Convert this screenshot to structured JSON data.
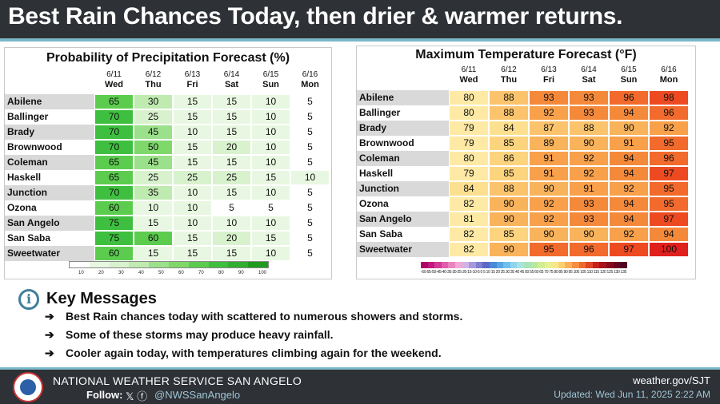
{
  "header": {
    "title": "Best Rain Chances Today, then drier & warmer returns."
  },
  "pop": {
    "title": "Probability of Precipitation Forecast (%)",
    "days": [
      {
        "date": "6/11",
        "wd": "Wed"
      },
      {
        "date": "6/12",
        "wd": "Thu"
      },
      {
        "date": "6/13",
        "wd": "Fri"
      },
      {
        "date": "6/14",
        "wd": "Sat"
      },
      {
        "date": "6/15",
        "wd": "Sun"
      },
      {
        "date": "6/16",
        "wd": "Mon"
      }
    ],
    "rows": [
      {
        "city": "Abilene",
        "values": [
          "65",
          "30",
          "15",
          "15",
          "10",
          "5"
        ]
      },
      {
        "city": "Ballinger",
        "values": [
          "70",
          "25",
          "15",
          "15",
          "10",
          "5"
        ]
      },
      {
        "city": "Brady",
        "values": [
          "70",
          "45",
          "10",
          "15",
          "10",
          "5"
        ]
      },
      {
        "city": "Brownwood",
        "values": [
          "70",
          "50",
          "15",
          "20",
          "10",
          "5"
        ]
      },
      {
        "city": "Coleman",
        "values": [
          "65",
          "45",
          "15",
          "15",
          "10",
          "5"
        ]
      },
      {
        "city": "Haskell",
        "values": [
          "65",
          "25",
          "25",
          "25",
          "15",
          "10"
        ]
      },
      {
        "city": "Junction",
        "values": [
          "70",
          "35",
          "10",
          "15",
          "10",
          "5"
        ]
      },
      {
        "city": "Ozona",
        "values": [
          "60",
          "10",
          "10",
          "5",
          "5",
          "5"
        ]
      },
      {
        "city": "San Angelo",
        "values": [
          "75",
          "15",
          "10",
          "10",
          "10",
          "5"
        ]
      },
      {
        "city": "San Saba",
        "values": [
          "75",
          "60",
          "15",
          "20",
          "15",
          "5"
        ]
      },
      {
        "city": "Sweetwater",
        "values": [
          "60",
          "15",
          "15",
          "15",
          "10",
          "5"
        ]
      }
    ],
    "legend_ticks": [
      "10",
      "20",
      "30",
      "40",
      "50",
      "60",
      "70",
      "80",
      "90",
      "100"
    ]
  },
  "maxt": {
    "title": "Maximum Temperature Forecast (°F)",
    "days": [
      {
        "date": "6/11",
        "wd": "Wed"
      },
      {
        "date": "6/12",
        "wd": "Thu"
      },
      {
        "date": "6/13",
        "wd": "Fri"
      },
      {
        "date": "6/14",
        "wd": "Sat"
      },
      {
        "date": "6/15",
        "wd": "Sun"
      },
      {
        "date": "6/16",
        "wd": "Mon"
      }
    ],
    "rows": [
      {
        "city": "Abilene",
        "values": [
          "80",
          "88",
          "93",
          "93",
          "96",
          "98"
        ]
      },
      {
        "city": "Ballinger",
        "values": [
          "80",
          "88",
          "92",
          "93",
          "94",
          "96"
        ]
      },
      {
        "city": "Brady",
        "values": [
          "79",
          "84",
          "87",
          "88",
          "90",
          "92"
        ]
      },
      {
        "city": "Brownwood",
        "values": [
          "79",
          "85",
          "89",
          "90",
          "91",
          "95"
        ]
      },
      {
        "city": "Coleman",
        "values": [
          "80",
          "86",
          "91",
          "92",
          "94",
          "96"
        ]
      },
      {
        "city": "Haskell",
        "values": [
          "79",
          "85",
          "91",
          "92",
          "94",
          "97"
        ]
      },
      {
        "city": "Junction",
        "values": [
          "84",
          "88",
          "90",
          "91",
          "92",
          "95"
        ]
      },
      {
        "city": "Ozona",
        "values": [
          "82",
          "90",
          "92",
          "93",
          "94",
          "95"
        ]
      },
      {
        "city": "San Angelo",
        "values": [
          "81",
          "90",
          "92",
          "93",
          "94",
          "97"
        ]
      },
      {
        "city": "San Saba",
        "values": [
          "82",
          "85",
          "90",
          "90",
          "92",
          "94"
        ]
      },
      {
        "city": "Sweetwater",
        "values": [
          "82",
          "90",
          "95",
          "96",
          "97",
          "100"
        ]
      }
    ],
    "legend_ticks": "-60-55-50-45-40-35-30-25-20-15-10-5 0 5 10 15 20 25 30 35 40 45 50 55 60 65 70 75 80 85 90 95 100 105 110 115 120 125 130 135 140"
  },
  "key": {
    "icon": "info-icon",
    "title": "Key Messages",
    "messages": [
      "Best Rain chances today with scattered to numerous showers and storms.",
      "Some of these storms may produce heavy rainfall.",
      "Cooler again today, with temperatures climbing again for the weekend."
    ],
    "arrow": "➔"
  },
  "footer": {
    "office": "NATIONAL WEATHER SERVICE SAN ANGELO",
    "follow": "Follow:",
    "social_icons": "𝕏 ⓕ",
    "handle": "@NWSSanAngelo",
    "site": "weather.gov/SJT",
    "updated": "Updated: Wed Jun 11, 2025 2:22 AM"
  },
  "colors": {
    "accent": "#7ab8c9",
    "header_bg": "#2e3136"
  }
}
